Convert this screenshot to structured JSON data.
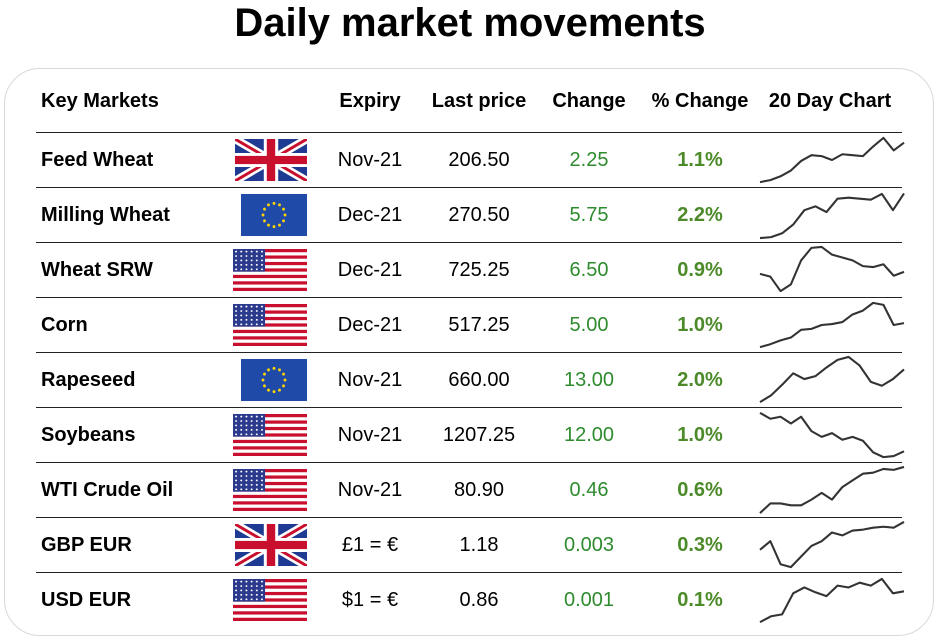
{
  "title": "Daily market movements",
  "headers": {
    "market": "Key Markets",
    "expiry": "Expiry",
    "last_price": "Last price",
    "change": "Change",
    "pct_change": "% Change",
    "chart": "20 Day Chart"
  },
  "colors": {
    "change": "#2e8b2e",
    "pct_change": "#4c8a2a",
    "line": "#333333"
  },
  "rows": [
    {
      "market": "Feed Wheat",
      "flag": "uk-flag-icon",
      "expiry": "Nov-21",
      "price": "206.50",
      "change": "2.25",
      "pct": "1.1%",
      "chart": [
        0.04,
        0.08,
        0.16,
        0.28,
        0.48,
        0.6,
        0.58,
        0.5,
        0.62,
        0.6,
        0.58,
        0.78,
        0.96,
        0.7,
        0.86
      ]
    },
    {
      "market": "Milling Wheat",
      "flag": "eu-flag-icon",
      "expiry": "Dec-21",
      "price": "270.50",
      "change": "5.75",
      "pct": "2.2%",
      "chart": [
        0.02,
        0.04,
        0.12,
        0.3,
        0.6,
        0.68,
        0.56,
        0.84,
        0.86,
        0.84,
        0.82,
        0.94,
        0.6,
        0.95
      ]
    },
    {
      "market": "Wheat SRW",
      "flag": "us-flag-icon",
      "expiry": "Dec-21",
      "price": "725.25",
      "change": "6.50",
      "pct": "0.9%",
      "chart": [
        0.42,
        0.36,
        0.06,
        0.2,
        0.7,
        0.96,
        0.98,
        0.82,
        0.76,
        0.7,
        0.58,
        0.56,
        0.62,
        0.38,
        0.46
      ]
    },
    {
      "market": "Corn",
      "flag": "us-flag-icon",
      "expiry": "Dec-21",
      "price": "517.25",
      "change": "5.00",
      "pct": "1.0%",
      "chart": [
        0.04,
        0.1,
        0.18,
        0.24,
        0.4,
        0.42,
        0.5,
        0.52,
        0.56,
        0.72,
        0.8,
        0.96,
        0.92,
        0.5,
        0.54
      ]
    },
    {
      "market": "Rapeseed",
      "flag": "eu-flag-icon",
      "expiry": "Nov-21",
      "price": "660.00",
      "change": "13.00",
      "pct": "2.0%",
      "chart": [
        0.04,
        0.18,
        0.4,
        0.64,
        0.52,
        0.58,
        0.76,
        0.92,
        0.98,
        0.8,
        0.46,
        0.38,
        0.52,
        0.72
      ]
    },
    {
      "market": "Soybeans",
      "flag": "us-flag-icon",
      "expiry": "Nov-21",
      "price": "1207.25",
      "change": "12.00",
      "pct": "1.0%",
      "chart": [
        0.96,
        0.84,
        0.88,
        0.74,
        0.88,
        0.58,
        0.46,
        0.54,
        0.4,
        0.46,
        0.38,
        0.14,
        0.04,
        0.06,
        0.16
      ]
    },
    {
      "market": "WTI Crude Oil",
      "flag": "us-flag-icon",
      "expiry": "Nov-21",
      "price": "80.90",
      "change": "0.46",
      "pct": "0.6%",
      "chart": [
        0.02,
        0.22,
        0.22,
        0.18,
        0.18,
        0.3,
        0.44,
        0.3,
        0.56,
        0.7,
        0.84,
        0.86,
        0.94,
        0.92,
        0.98
      ]
    },
    {
      "market": "GBP EUR",
      "flag": "uk-flag-icon",
      "expiry": "£1 = €",
      "price": "1.18",
      "change": "0.003",
      "pct": "0.3%",
      "chart": [
        0.4,
        0.58,
        0.1,
        0.04,
        0.26,
        0.48,
        0.58,
        0.76,
        0.7,
        0.8,
        0.82,
        0.86,
        0.88,
        0.86,
        0.98
      ]
    },
    {
      "market": "USD EUR",
      "flag": "us-flag-icon",
      "expiry": "$1 = €",
      "price": "0.86",
      "change": "0.001",
      "pct": "0.1%",
      "chart": [
        0.04,
        0.16,
        0.2,
        0.64,
        0.76,
        0.66,
        0.58,
        0.8,
        0.76,
        0.86,
        0.8,
        0.94,
        0.64,
        0.68
      ]
    }
  ]
}
